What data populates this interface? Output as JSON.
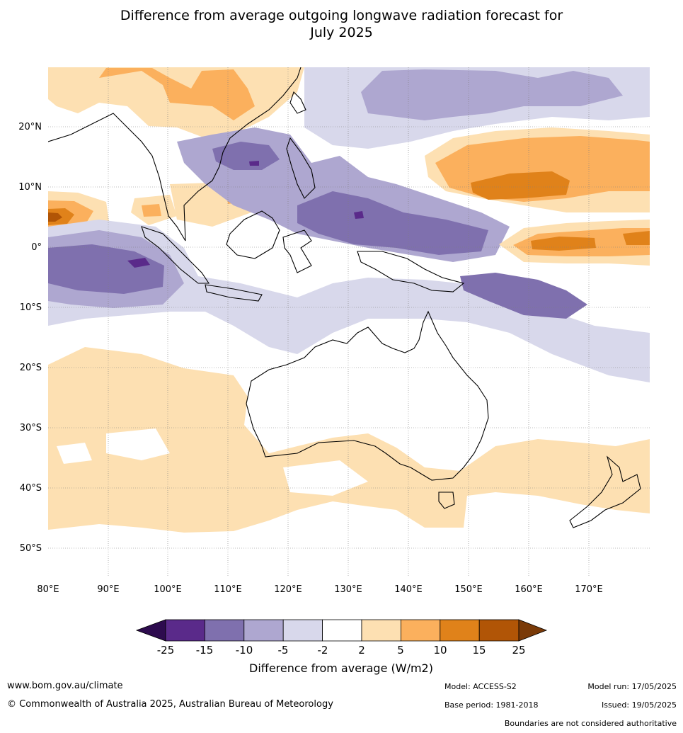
{
  "title": {
    "line1": "Difference from average outgoing longwave radiation forecast for",
    "line2": "July 2025"
  },
  "map": {
    "lon_labels": [
      "80°E",
      "90°E",
      "100°E",
      "110°E",
      "120°E",
      "130°E",
      "140°E",
      "150°E",
      "160°E",
      "170°E"
    ],
    "lat_labels": [
      "20°N",
      "10°N",
      "0°",
      "10°S",
      "20°S",
      "30°S",
      "40°S",
      "50°S"
    ]
  },
  "colorbar": {
    "ticks": [
      "-25",
      "-15",
      "-10",
      "-5",
      "-2",
      "2",
      "5",
      "10",
      "15",
      "25"
    ],
    "colors": [
      "#2d0b4e",
      "#5a2a8a",
      "#7f70ae",
      "#aea7d0",
      "#d8d8eb",
      "#ffffff",
      "#fde0b2",
      "#fbb05d",
      "#e0821a",
      "#b15506",
      "#7a3a08"
    ],
    "label": "Difference from average (W/m2)"
  },
  "footer": {
    "website": "www.bom.gov.au/climate",
    "copyright": "© Commonwealth of Australia 2025, Australian Bureau of Meteorology",
    "model": "Model: ACCESS-S2",
    "base_period": "Base period: 1981-2018",
    "model_run": "Model run: 17/05/2025",
    "issued": "Issued: 19/05/2025",
    "disclaimer": "Boundaries are not considered authoritative"
  }
}
